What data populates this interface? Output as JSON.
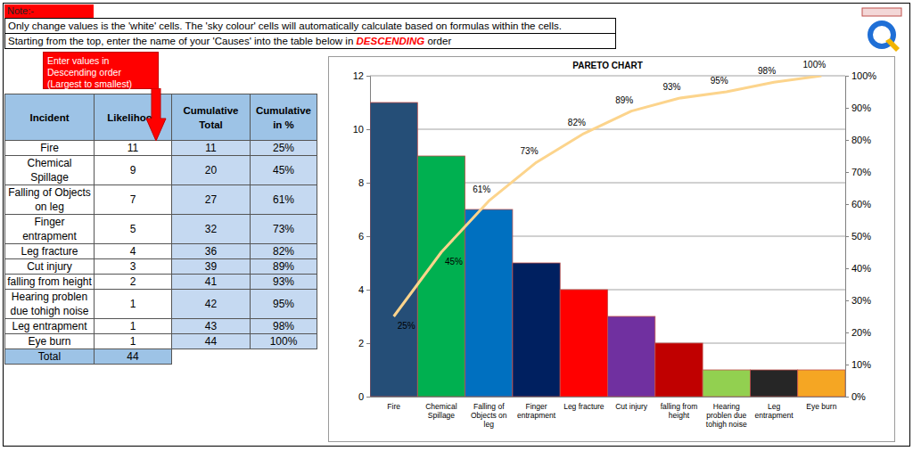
{
  "notes": {
    "label": "Note:-",
    "line1": "Only change values is the 'white' cells. The 'sky colour' cells will automatically calculate based on formulas within the cells.",
    "line2": {
      "before": "Starting from the top, enter the name of your 'Causes' into the table below in ",
      "emphasis": "DESCENDING",
      "after": " order"
    }
  },
  "callout": "Enter values in Descending order (Largest to smallest)",
  "table": {
    "headers": [
      "Incident",
      "Likelihood",
      "Cumulative Total",
      "Cumulative in %"
    ],
    "rows": [
      [
        "Fire",
        11,
        11,
        "25%"
      ],
      [
        "Chemical Spillage",
        9,
        20,
        "45%"
      ],
      [
        "Falling of Objects on leg",
        7,
        27,
        "61%"
      ],
      [
        "Finger entrapment",
        5,
        32,
        "73%"
      ],
      [
        "Leg fracture",
        4,
        36,
        "82%"
      ],
      [
        "Cut injury",
        3,
        39,
        "89%"
      ],
      [
        "falling from height",
        2,
        41,
        "93%"
      ],
      [
        "Hearing problen due tohigh noise",
        1,
        42,
        "95%"
      ],
      [
        "Leg entrapment",
        1,
        43,
        "98%"
      ],
      [
        "Eye burn",
        1,
        44,
        "100%"
      ]
    ],
    "total": [
      "Total",
      44
    ]
  },
  "chart_data": {
    "type": "bar",
    "title": "PARETO CHART",
    "categories": [
      "Fire",
      "Chemical Spillage",
      "Falling of Objects on leg",
      "Finger entrapment",
      "Leg fracture",
      "Cut injury",
      "falling from height",
      "Hearing problen due tohigh noise",
      "Leg entrapment",
      "Eye burn"
    ],
    "series": [
      {
        "type": "bar",
        "colors": [
          "#254e77",
          "#00b050",
          "#0070c0",
          "#002060",
          "#ff0000",
          "#7030a0",
          "#c00000",
          "#92d050",
          "#262626",
          "#f5a623"
        ],
        "values": [
          11,
          9,
          7,
          5,
          4,
          3,
          2,
          1,
          1,
          1
        ]
      },
      {
        "type": "line",
        "axis": "y2",
        "color": "#fcd48c",
        "data_labels": true,
        "values": [
          25,
          45,
          61,
          73,
          82,
          89,
          93,
          95,
          98,
          100
        ],
        "value_labels": [
          "25%",
          "45%",
          "61%",
          "73%",
          "82%",
          "89%",
          "93%",
          "95%",
          "98%",
          "100%"
        ]
      }
    ],
    "ylim": [
      0,
      12
    ],
    "yticks": [
      0,
      2,
      4,
      6,
      8,
      10,
      12
    ],
    "y2lim": [
      0,
      100
    ],
    "y2ticks": [
      {
        "value": 0,
        "label": "0%"
      },
      {
        "value": 10,
        "label": "10%"
      },
      {
        "value": 20,
        "label": "20%"
      },
      {
        "value": 30,
        "label": "30%"
      },
      {
        "value": 40,
        "label": "40%"
      },
      {
        "value": 50,
        "label": "50%"
      },
      {
        "value": 60,
        "label": "60%"
      },
      {
        "value": 70,
        "label": "70%"
      },
      {
        "value": 80,
        "label": "80%"
      },
      {
        "value": 90,
        "label": "90%"
      },
      {
        "value": 100,
        "label": "100%"
      }
    ],
    "grid": true
  }
}
